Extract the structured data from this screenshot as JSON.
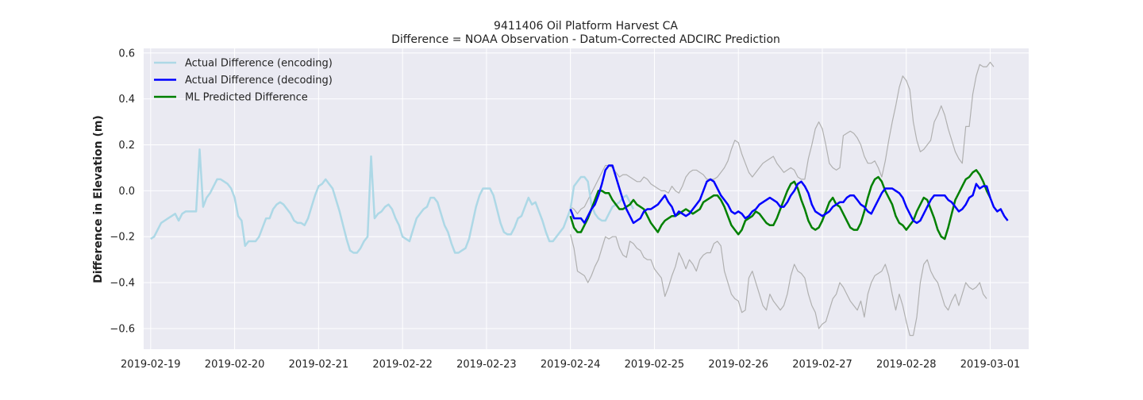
{
  "chart_data": {
    "type": "line",
    "title": "9411406 Oil Platform Harvest CA",
    "subtitle": "Difference = NOAA Observation - Datum-Corrected ADCIRC Prediction",
    "xlabel": "",
    "ylabel": "Difference in Elevation (m)",
    "x_ticks": [
      "2019-02-19",
      "2019-02-20",
      "2019-02-21",
      "2019-02-22",
      "2019-02-23",
      "2019-02-24",
      "2019-02-25",
      "2019-02-26",
      "2019-02-27",
      "2019-02-28",
      "2019-03-01"
    ],
    "y_ticks": [
      "−0.6",
      "−0.4",
      "−0.2",
      "0.0",
      "0.2",
      "0.4",
      "0.6"
    ],
    "xlim": [
      "2019-02-18T22:00",
      "2019-03-01T11:00"
    ],
    "ylim": [
      -0.69,
      0.62
    ],
    "grid": true,
    "legend_position": "top-left",
    "colors": {
      "background": "#eaeaf2",
      "grid": "#ffffff",
      "encoding": "#add8e6",
      "decoding": "#0000ff",
      "predicted": "#008000",
      "bounds": "#b0b0b0"
    },
    "series": [
      {
        "name": "Actual Difference (encoding)",
        "x_start": "2019-02-19T00:00",
        "step_hours": 1,
        "values": [
          -0.21,
          -0.2,
          -0.17,
          -0.14,
          -0.13,
          -0.12,
          -0.11,
          -0.1,
          -0.13,
          -0.1,
          -0.09,
          -0.09,
          -0.09,
          -0.09,
          0.18,
          -0.07,
          -0.03,
          -0.01,
          0.02,
          0.05,
          0.05,
          0.04,
          0.03,
          0.01,
          -0.03,
          -0.11,
          -0.13,
          -0.24,
          -0.22,
          -0.22,
          -0.22,
          -0.2,
          -0.16,
          -0.12,
          -0.12,
          -0.08,
          -0.06,
          -0.05,
          -0.06,
          -0.08,
          -0.1,
          -0.13,
          -0.14,
          -0.14,
          -0.15,
          -0.12,
          -0.07,
          -0.02,
          0.02,
          0.03,
          0.05,
          0.03,
          0.01,
          -0.04,
          -0.09,
          -0.15,
          -0.21,
          -0.26,
          -0.27,
          -0.27,
          -0.25,
          -0.22,
          -0.2,
          0.15,
          -0.12,
          -0.1,
          -0.09,
          -0.07,
          -0.06,
          -0.08,
          -0.12,
          -0.15,
          -0.2,
          -0.21,
          -0.22,
          -0.17,
          -0.12,
          -0.1,
          -0.08,
          -0.07,
          -0.03,
          -0.03,
          -0.05,
          -0.1,
          -0.15,
          -0.18,
          -0.23,
          -0.27,
          -0.27,
          -0.26,
          -0.25,
          -0.21,
          -0.14,
          -0.07,
          -0.02,
          0.01,
          0.01,
          0.01,
          -0.02,
          -0.08,
          -0.14,
          -0.18,
          -0.19,
          -0.19,
          -0.16,
          -0.12,
          -0.11,
          -0.07,
          -0.03,
          -0.06,
          -0.05,
          -0.09,
          -0.13,
          -0.18,
          -0.22,
          -0.22,
          -0.2,
          -0.18,
          -0.16,
          -0.12,
          -0.08,
          0.02,
          0.04,
          0.06,
          0.06,
          0.04,
          -0.06,
          -0.1,
          -0.12,
          -0.13,
          -0.13,
          -0.1,
          -0.07,
          -0.06,
          -0.05,
          -0.03,
          -0.02,
          -0.05,
          -0.08
        ]
      },
      {
        "name": "Actual Difference (decoding)",
        "x_start": "2019-02-24T00:00",
        "step_hours": 1,
        "values": [
          -0.08,
          -0.12,
          -0.12,
          -0.12,
          -0.14,
          -0.11,
          -0.08,
          -0.06,
          -0.02,
          0.03,
          0.09,
          0.11,
          0.11,
          0.06,
          0.01,
          -0.04,
          -0.08,
          -0.11,
          -0.14,
          -0.13,
          -0.12,
          -0.09,
          -0.08,
          -0.08,
          -0.07,
          -0.06,
          -0.04,
          -0.02,
          -0.05,
          -0.07,
          -0.11,
          -0.09,
          -0.1,
          -0.11,
          -0.1,
          -0.08,
          -0.06,
          -0.04,
          0.0,
          0.04,
          0.05,
          0.04,
          0.01,
          -0.02,
          -0.04,
          -0.06,
          -0.09,
          -0.1,
          -0.09,
          -0.1,
          -0.12,
          -0.11,
          -0.09,
          -0.08,
          -0.06,
          -0.05,
          -0.04,
          -0.03,
          -0.04,
          -0.05,
          -0.07,
          -0.07,
          -0.05,
          -0.02,
          0.0,
          0.03,
          0.04,
          0.02,
          -0.01,
          -0.06,
          -0.09,
          -0.1,
          -0.11,
          -0.1,
          -0.09,
          -0.07,
          -0.06,
          -0.05,
          -0.05,
          -0.03,
          -0.02,
          -0.02,
          -0.04,
          -0.06,
          -0.07,
          -0.09,
          -0.1,
          -0.07,
          -0.04,
          -0.01,
          0.01,
          0.01,
          0.01,
          0.0,
          -0.01,
          -0.03,
          -0.07,
          -0.1,
          -0.13,
          -0.14,
          -0.13,
          -0.1,
          -0.07,
          -0.04,
          -0.02,
          -0.02,
          -0.02,
          -0.02,
          -0.04,
          -0.05,
          -0.07,
          -0.09,
          -0.08,
          -0.06,
          -0.03,
          -0.02,
          0.03,
          0.01,
          0.02,
          0.02,
          -0.03,
          -0.07,
          -0.09,
          -0.08,
          -0.11,
          -0.13
        ]
      },
      {
        "name": "ML Predicted Difference",
        "x_start": "2019-02-24T00:00",
        "step_hours": 1,
        "values": [
          -0.11,
          -0.16,
          -0.18,
          -0.18,
          -0.15,
          -0.12,
          -0.08,
          -0.04,
          0.0,
          0.0,
          -0.01,
          -0.01,
          -0.04,
          -0.06,
          -0.08,
          -0.08,
          -0.07,
          -0.06,
          -0.04,
          -0.06,
          -0.07,
          -0.08,
          -0.11,
          -0.14,
          -0.16,
          -0.18,
          -0.15,
          -0.13,
          -0.12,
          -0.11,
          -0.11,
          -0.1,
          -0.09,
          -0.08,
          -0.09,
          -0.1,
          -0.09,
          -0.08,
          -0.05,
          -0.04,
          -0.03,
          -0.02,
          -0.02,
          -0.04,
          -0.07,
          -0.11,
          -0.15,
          -0.17,
          -0.19,
          -0.17,
          -0.13,
          -0.12,
          -0.11,
          -0.09,
          -0.1,
          -0.12,
          -0.14,
          -0.15,
          -0.15,
          -0.12,
          -0.08,
          -0.04,
          0.0,
          0.03,
          0.04,
          0.01,
          -0.04,
          -0.08,
          -0.13,
          -0.16,
          -0.17,
          -0.16,
          -0.13,
          -0.09,
          -0.05,
          -0.03,
          -0.06,
          -0.07,
          -0.1,
          -0.13,
          -0.16,
          -0.17,
          -0.17,
          -0.14,
          -0.09,
          -0.03,
          0.02,
          0.05,
          0.06,
          0.04,
          0.0,
          -0.03,
          -0.06,
          -0.11,
          -0.14,
          -0.15,
          -0.17,
          -0.15,
          -0.13,
          -0.09,
          -0.06,
          -0.03,
          -0.04,
          -0.08,
          -0.12,
          -0.17,
          -0.2,
          -0.21,
          -0.16,
          -0.1,
          -0.04,
          -0.01,
          0.02,
          0.05,
          0.06,
          0.08,
          0.09,
          0.07,
          0.04,
          0.0,
          -0.03
        ]
      },
      {
        "name": "",
        "role": "upper-bound",
        "x_start": "2019-02-24T00:00",
        "step_hours": 1,
        "values": [
          -0.07,
          -0.08,
          -0.1,
          -0.08,
          -0.07,
          -0.04,
          -0.01,
          0.02,
          0.05,
          0.08,
          0.11,
          0.11,
          0.1,
          0.08,
          0.06,
          0.07,
          0.07,
          0.06,
          0.05,
          0.04,
          0.04,
          0.06,
          0.05,
          0.03,
          0.02,
          0.01,
          0.0,
          0.0,
          -0.01,
          0.02,
          0.0,
          -0.01,
          0.02,
          0.06,
          0.08,
          0.09,
          0.09,
          0.08,
          0.07,
          0.05,
          0.05,
          0.05,
          0.06,
          0.08,
          0.1,
          0.13,
          0.18,
          0.22,
          0.21,
          0.16,
          0.12,
          0.08,
          0.06,
          0.08,
          0.1,
          0.12,
          0.13,
          0.14,
          0.15,
          0.12,
          0.1,
          0.08,
          0.09,
          0.1,
          0.09,
          0.06,
          0.05,
          0.05,
          0.14,
          0.2,
          0.27,
          0.3,
          0.27,
          0.2,
          0.12,
          0.1,
          0.09,
          0.1,
          0.24,
          0.25,
          0.26,
          0.25,
          0.23,
          0.2,
          0.15,
          0.12,
          0.12,
          0.13,
          0.1,
          0.06,
          0.13,
          0.22,
          0.3,
          0.37,
          0.45,
          0.5,
          0.48,
          0.44,
          0.3,
          0.22,
          0.17,
          0.18,
          0.2,
          0.22,
          0.3,
          0.33,
          0.37,
          0.33,
          0.27,
          0.22,
          0.17,
          0.14,
          0.12,
          0.28,
          0.28,
          0.42,
          0.5,
          0.55,
          0.54,
          0.54,
          0.56,
          0.54
        ]
      },
      {
        "name": "",
        "role": "lower-bound",
        "x_start": "2019-02-24T00:00",
        "step_hours": 1,
        "values": [
          -0.19,
          -0.25,
          -0.35,
          -0.36,
          -0.37,
          -0.4,
          -0.37,
          -0.33,
          -0.3,
          -0.25,
          -0.2,
          -0.21,
          -0.2,
          -0.2,
          -0.25,
          -0.28,
          -0.29,
          -0.22,
          -0.23,
          -0.25,
          -0.26,
          -0.29,
          -0.3,
          -0.3,
          -0.34,
          -0.36,
          -0.38,
          -0.46,
          -0.42,
          -0.37,
          -0.33,
          -0.27,
          -0.3,
          -0.34,
          -0.3,
          -0.32,
          -0.35,
          -0.3,
          -0.28,
          -0.27,
          -0.27,
          -0.23,
          -0.22,
          -0.24,
          -0.35,
          -0.4,
          -0.45,
          -0.47,
          -0.48,
          -0.53,
          -0.52,
          -0.38,
          -0.35,
          -0.4,
          -0.45,
          -0.5,
          -0.52,
          -0.45,
          -0.48,
          -0.5,
          -0.52,
          -0.5,
          -0.45,
          -0.37,
          -0.32,
          -0.35,
          -0.36,
          -0.38,
          -0.45,
          -0.5,
          -0.53,
          -0.6,
          -0.58,
          -0.57,
          -0.52,
          -0.47,
          -0.45,
          -0.4,
          -0.42,
          -0.45,
          -0.48,
          -0.5,
          -0.52,
          -0.48,
          -0.55,
          -0.45,
          -0.4,
          -0.37,
          -0.36,
          -0.35,
          -0.32,
          -0.37,
          -0.45,
          -0.52,
          -0.45,
          -0.5,
          -0.57,
          -0.63,
          -0.63,
          -0.55,
          -0.4,
          -0.32,
          -0.3,
          -0.35,
          -0.38,
          -0.4,
          -0.45,
          -0.5,
          -0.52,
          -0.48,
          -0.45,
          -0.5,
          -0.45,
          -0.4,
          -0.42,
          -0.43,
          -0.42,
          -0.4,
          -0.45,
          -0.47
        ]
      }
    ]
  }
}
